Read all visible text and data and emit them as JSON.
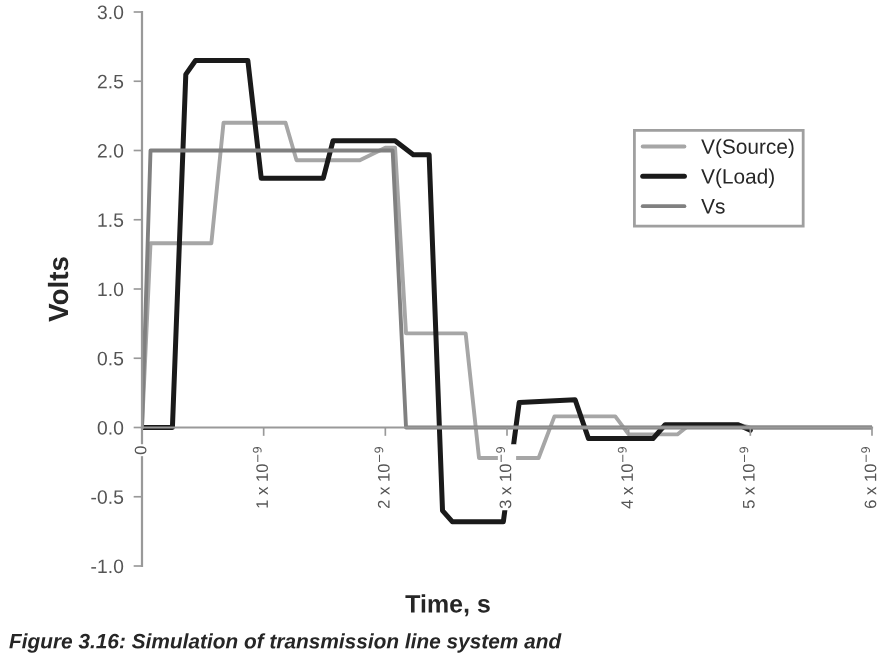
{
  "chart_data": {
    "type": "line",
    "xlabel": "Time, s",
    "ylabel": "Volts",
    "annotations": [
      "Figure 3.16: Simulation of transmission line system and"
    ],
    "xlim": [
      0,
      6e-09
    ],
    "ylim": [
      -1.0,
      3.0
    ],
    "xticks": [
      {
        "value": 0,
        "label": "0"
      },
      {
        "value": 1e-09,
        "label": "1 x 10$^{−9}$"
      },
      {
        "value": 2e-09,
        "label": "2 x 10$^{−9}$"
      },
      {
        "value": 3e-09,
        "label": "3 x 10$^{−9}$"
      },
      {
        "value": 4e-09,
        "label": "4 x 10$^{−9}$"
      },
      {
        "value": 5e-09,
        "label": "5 x 10$^{−9}$"
      },
      {
        "value": 6e-09,
        "label": "6 x 10$^{−9}$"
      }
    ],
    "yticks": [
      {
        "value": -1,
        "label": "-1.0"
      },
      -0.5,
      {
        "value": 0,
        "label": "0.0"
      },
      0.5,
      {
        "value": 1,
        "label": "1.0"
      },
      1.5,
      {
        "value": 2,
        "label": "2.0"
      },
      2.5,
      {
        "value": 3,
        "label": "3.0"
      }
    ],
    "legend": "right",
    "grid": false,
    "marker": "none",
    "line_style": "solid",
    "series": [
      {
        "name": "V(Source)",
        "color": "#a6a6a6",
        "x": [
          0,
          7e-11,
          5.7e-10,
          6.7e-10,
          1.18e-09,
          1.27e-09,
          1.79e-09,
          2e-09,
          2.08e-09,
          2.17e-09,
          2.66e-09,
          2.77e-09,
          3.26e-09,
          3.39e-09,
          3.89e-09,
          4e-09,
          4.4e-09,
          4.5e-09,
          4.9e-09,
          5e-09,
          6e-09
        ],
        "values": [
          0,
          1.33,
          1.33,
          2.2,
          2.2,
          1.93,
          1.93,
          2.02,
          2.02,
          0.68,
          0.68,
          -0.22,
          -0.22,
          0.08,
          0.08,
          -0.05,
          -0.05,
          0.02,
          0.02,
          0,
          0
        ]
      },
      {
        "name": "V(Load)",
        "color": "#1a1a1a",
        "x": [
          0,
          2.5e-10,
          3.6e-10,
          4.4e-10,
          8.7e-10,
          9.8e-10,
          1.49e-09,
          1.57e-09,
          2.08e-09,
          2.23e-09,
          2.36e-09,
          2.47e-09,
          2.55e-09,
          2.97e-09,
          3.1e-09,
          3.56e-09,
          3.67e-09,
          4.2e-09,
          4.3e-09,
          4.9e-09,
          5e-09
        ],
        "values": [
          0,
          0,
          2.55,
          2.65,
          2.65,
          1.8,
          1.8,
          2.07,
          2.07,
          1.97,
          1.97,
          -0.6,
          -0.68,
          -0.68,
          0.18,
          0.2,
          -0.08,
          -0.08,
          0.02,
          0.02,
          -0.02
        ]
      },
      {
        "name": "Vs",
        "color": "#808080",
        "x": [
          0,
          7e-11,
          2.06e-09,
          2.17e-09,
          6e-09
        ],
        "values": [
          0,
          2.0,
          2.0,
          0,
          0
        ]
      }
    ]
  }
}
